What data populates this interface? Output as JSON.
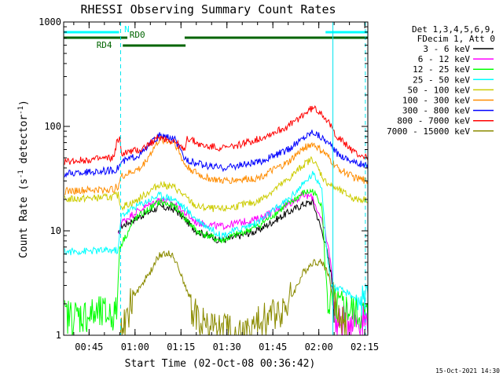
{
  "chart_data": {
    "type": "line",
    "title": "RHESSI Observing Summary Count Rates",
    "xlabel": "Start Time (02-Oct-08 00:36:42)",
    "ylabel_parts": [
      "Count Rate (s",
      "-1",
      " detector",
      "-1",
      ")"
    ],
    "ylabel": "Count Rate (s-1 detector-1)",
    "yscale": "log",
    "ylim": [
      1,
      1000
    ],
    "xlim_minutes": [
      36.7,
      136.0
    ],
    "x_ticks": [
      {
        "label": "00:45",
        "min": 45
      },
      {
        "label": "01:00",
        "min": 60
      },
      {
        "label": "01:15",
        "min": 75
      },
      {
        "label": "01:30",
        "min": 90
      },
      {
        "label": "01:45",
        "min": 105
      },
      {
        "label": "02:00",
        "min": 120
      },
      {
        "label": "02:15",
        "min": 135
      }
    ],
    "y_ticks": [
      {
        "label": "1",
        "v": 1
      },
      {
        "label": "10",
        "v": 10
      },
      {
        "label": "100",
        "v": 100
      },
      {
        "label": "1000",
        "v": 1000
      }
    ],
    "legend_header": [
      "Det 1,3,4,5,6,9,",
      "FDecim 1, Att 0"
    ],
    "legend_position": "right",
    "timestamp": "15-Oct-2021 14:30",
    "vertical_markers_min": [
      55.3,
      124.6,
      135.2
    ],
    "flag_bars": [
      {
        "label": "N",
        "color": "#00ffff",
        "segments": [
          [
            36.7,
            54.8
          ],
          [
            122.2,
            136.0
          ]
        ]
      },
      {
        "label": "RD0",
        "color": "#006400",
        "segments": [
          [
            36.7,
            57.5
          ],
          [
            76.2,
            136.0
          ]
        ]
      },
      {
        "label": "RD4",
        "color": "#006400",
        "segments": [
          [
            56.0,
            76.5
          ]
        ]
      }
    ],
    "series": [
      {
        "name": "3 - 6 keV",
        "color": "#000000",
        "anchors": [
          [
            54.5,
            9
          ],
          [
            55.5,
            11
          ],
          [
            60,
            13
          ],
          [
            68,
            17
          ],
          [
            73,
            16
          ],
          [
            80,
            10
          ],
          [
            88,
            8
          ],
          [
            100,
            10
          ],
          [
            110,
            15
          ],
          [
            115,
            18
          ],
          [
            118,
            19
          ],
          [
            122,
            8
          ],
          [
            124,
            4
          ],
          [
            125,
            2
          ]
        ]
      },
      {
        "name": "6 - 12 keV",
        "color": "#ff00ff",
        "anchors": [
          [
            54.5,
            9
          ],
          [
            55.5,
            12
          ],
          [
            60,
            15
          ],
          [
            68,
            20
          ],
          [
            73,
            18
          ],
          [
            80,
            12
          ],
          [
            88,
            11
          ],
          [
            100,
            13
          ],
          [
            110,
            18
          ],
          [
            115,
            22
          ],
          [
            118,
            21
          ],
          [
            122,
            10
          ],
          [
            124,
            5
          ],
          [
            125,
            2
          ],
          [
            126,
            1.2
          ],
          [
            130,
            1.5
          ],
          [
            136,
            1.4
          ]
        ]
      },
      {
        "name": "12 - 25 keV",
        "color": "#00ff00",
        "anchors": [
          [
            37,
            1.5
          ],
          [
            54,
            1.6
          ],
          [
            55,
            7
          ],
          [
            60,
            13
          ],
          [
            68,
            19
          ],
          [
            73,
            17
          ],
          [
            80,
            10
          ],
          [
            88,
            8
          ],
          [
            100,
            11
          ],
          [
            110,
            18
          ],
          [
            115,
            23
          ],
          [
            118,
            24
          ],
          [
            121,
            18
          ],
          [
            122,
            5
          ],
          [
            123,
            2
          ],
          [
            136,
            1.5
          ]
        ]
      },
      {
        "name": "25 - 50 keV",
        "color": "#00ffff",
        "anchors": [
          [
            37,
            6.3
          ],
          [
            52,
            6.5
          ],
          [
            54.5,
            6.5
          ],
          [
            55.5,
            14
          ],
          [
            60,
            17
          ],
          [
            68,
            22
          ],
          [
            73,
            20
          ],
          [
            80,
            13
          ],
          [
            88,
            9
          ],
          [
            100,
            12
          ],
          [
            110,
            20
          ],
          [
            115,
            28
          ],
          [
            118,
            35
          ],
          [
            121,
            27
          ],
          [
            122,
            10
          ],
          [
            123,
            5
          ],
          [
            124,
            3
          ],
          [
            136,
            2
          ]
        ]
      },
      {
        "name": "50 - 100 keV",
        "color": "#cccc00",
        "anchors": [
          [
            37,
            20
          ],
          [
            52,
            21
          ],
          [
            54.5,
            22
          ],
          [
            55.5,
            17
          ],
          [
            60,
            19
          ],
          [
            68,
            28
          ],
          [
            73,
            26
          ],
          [
            80,
            17
          ],
          [
            88,
            16
          ],
          [
            100,
            19
          ],
          [
            110,
            31
          ],
          [
            115,
            43
          ],
          [
            118,
            49
          ],
          [
            122,
            30
          ],
          [
            126,
            25
          ],
          [
            132,
            20
          ],
          [
            136,
            20
          ]
        ]
      },
      {
        "name": "100 - 300 keV",
        "color": "#ff8c00",
        "anchors": [
          [
            37,
            24
          ],
          [
            53,
            25
          ],
          [
            54.5,
            27
          ],
          [
            55.5,
            33
          ],
          [
            62,
            40
          ],
          [
            68,
            75
          ],
          [
            73,
            70
          ],
          [
            76,
            44
          ],
          [
            77,
            41
          ],
          [
            82,
            33
          ],
          [
            88,
            30
          ],
          [
            100,
            32
          ],
          [
            110,
            45
          ],
          [
            115,
            62
          ],
          [
            118,
            68
          ],
          [
            122,
            55
          ],
          [
            126,
            40
          ],
          [
            132,
            32
          ],
          [
            136,
            30
          ]
        ]
      },
      {
        "name": "300 - 800 keV",
        "color": "#0000ff",
        "anchors": [
          [
            37,
            35
          ],
          [
            53,
            38
          ],
          [
            54.5,
            40
          ],
          [
            55.5,
            45
          ],
          [
            62,
            55
          ],
          [
            68,
            82
          ],
          [
            73,
            75
          ],
          [
            76,
            50
          ],
          [
            80,
            44
          ],
          [
            88,
            40
          ],
          [
            100,
            45
          ],
          [
            110,
            60
          ],
          [
            115,
            78
          ],
          [
            118,
            90
          ],
          [
            122,
            75
          ],
          [
            126,
            55
          ],
          [
            132,
            45
          ],
          [
            136,
            42
          ]
        ]
      },
      {
        "name": "800 - 7000 keV",
        "color": "#ff0000",
        "anchors": [
          [
            37,
            46
          ],
          [
            53,
            50
          ],
          [
            54,
            70
          ],
          [
            55,
            75
          ],
          [
            55.5,
            55
          ],
          [
            62,
            60
          ],
          [
            68,
            79
          ],
          [
            73,
            72
          ],
          [
            76,
            58
          ],
          [
            77,
            78
          ],
          [
            82,
            65
          ],
          [
            90,
            62
          ],
          [
            100,
            75
          ],
          [
            110,
            100
          ],
          [
            115,
            130
          ],
          [
            118,
            150
          ],
          [
            121,
            135
          ],
          [
            126,
            80
          ],
          [
            132,
            55
          ],
          [
            136,
            50
          ]
        ]
      },
      {
        "name": "7000 - 15000 keV",
        "color": "#8b8b00",
        "anchors": [
          [
            55,
            1
          ],
          [
            60,
            2.5
          ],
          [
            65,
            4
          ],
          [
            68,
            6
          ],
          [
            72,
            6
          ],
          [
            75,
            4
          ],
          [
            78,
            2
          ],
          [
            82,
            1.3
          ],
          [
            95,
            1
          ],
          [
            110,
            2
          ],
          [
            115,
            4
          ],
          [
            118,
            5
          ],
          [
            121,
            5
          ],
          [
            123,
            4
          ],
          [
            125,
            2
          ],
          [
            127,
            1.5
          ],
          [
            130,
            1
          ]
        ]
      }
    ]
  }
}
